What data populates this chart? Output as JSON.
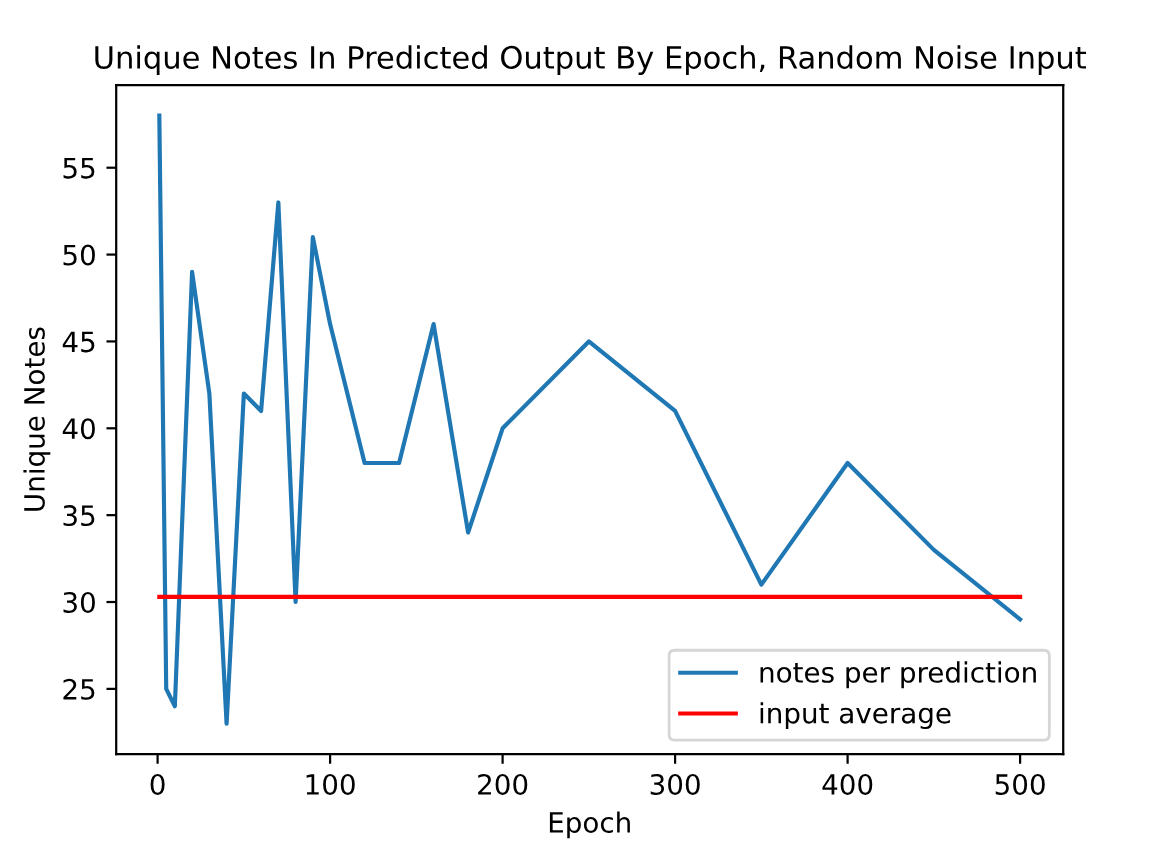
{
  "chart_data": {
    "type": "line",
    "title": "Unique Notes In Predicted Output By Epoch, Random Noise Input",
    "xlabel": "Epoch",
    "ylabel": "Unique Notes",
    "series": [
      {
        "name": "notes per prediction",
        "color": "#1f77b4",
        "x": [
          1,
          5,
          10,
          20,
          30,
          40,
          50,
          60,
          70,
          80,
          90,
          100,
          120,
          140,
          160,
          180,
          200,
          250,
          300,
          350,
          400,
          450,
          500
        ],
        "values": [
          58,
          25,
          24,
          49,
          42,
          23,
          42,
          41,
          53,
          30,
          51,
          46,
          38,
          38,
          46,
          34,
          40,
          45,
          41,
          31,
          38,
          33,
          29
        ]
      },
      {
        "name": "input average",
        "color": "#ff0000",
        "x": [
          1,
          500
        ],
        "values": [
          30.3,
          30.3
        ]
      }
    ],
    "xlim": [
      -24,
      525
    ],
    "ylim": [
      21.25,
      59.75
    ],
    "xticks": [
      0,
      100,
      200,
      300,
      400,
      500
    ],
    "yticks": [
      25,
      30,
      35,
      40,
      45,
      50,
      55
    ],
    "grid": false,
    "legend": "lower right"
  }
}
